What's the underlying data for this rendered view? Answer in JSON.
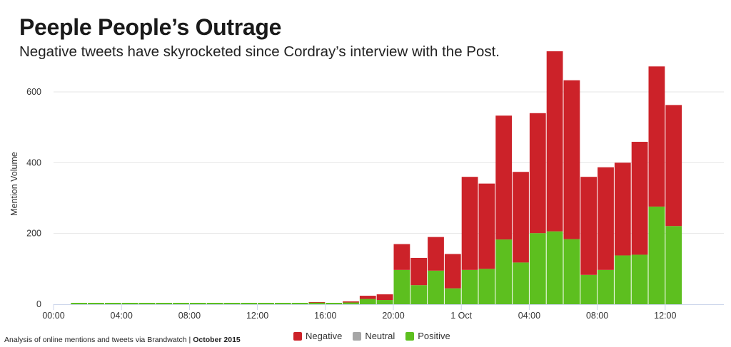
{
  "header": {
    "title": "Peeple People’s Outrage",
    "subtitle": "Negative tweets have skyrocketed since Cordray’s interview with the Post."
  },
  "footer": {
    "source": "Analysis of online mentions and tweets via Brandwatch |",
    "date": "October 2015"
  },
  "chart_data": {
    "type": "bar",
    "stacked": true,
    "ylabel": "Mention Volume",
    "ylim": [
      0,
      720
    ],
    "yticks": [
      0,
      200,
      400,
      600
    ],
    "grid": true,
    "legend_position": "bottom-center",
    "x_tick_labels": [
      "00:00",
      "04:00",
      "08:00",
      "12:00",
      "16:00",
      "20:00",
      "1 Oct",
      "04:00",
      "08:00",
      "12:00"
    ],
    "x_tick_hours": [
      0,
      4,
      8,
      12,
      16,
      20,
      24,
      28,
      32,
      36
    ],
    "x_hours": [
      2,
      3,
      4,
      5,
      6,
      7,
      8,
      9,
      10,
      11,
      12,
      13,
      14,
      15,
      16,
      17,
      18,
      19,
      20,
      21,
      22,
      23,
      24,
      25,
      26,
      27,
      28,
      29,
      30,
      31,
      32,
      33,
      34,
      35,
      36,
      37
    ],
    "series": [
      {
        "name": "Positive",
        "color": "#5dbf1f",
        "values": [
          4,
          4,
          4,
          4,
          4,
          4,
          4,
          4,
          4,
          4,
          4,
          4,
          4,
          4,
          5,
          4,
          5,
          15,
          12,
          97,
          54,
          95,
          45,
          97,
          100,
          183,
          118,
          201,
          206,
          184,
          83,
          97,
          138,
          140,
          276,
          221
        ]
      },
      {
        "name": "Neutral",
        "color": "#a6a6a6",
        "values": [
          0,
          0,
          0,
          0,
          0,
          0,
          0,
          0,
          0,
          0,
          0,
          0,
          0,
          0,
          0,
          0,
          0,
          0,
          0,
          0,
          0,
          0,
          0,
          0,
          0,
          0,
          0,
          0,
          0,
          0,
          0,
          0,
          0,
          0,
          0,
          0
        ]
      },
      {
        "name": "Negative",
        "color": "#cc2229",
        "values": [
          0,
          0,
          0,
          0,
          0,
          0,
          0,
          0,
          0,
          0,
          0,
          0,
          0,
          0,
          1,
          0,
          3,
          9,
          16,
          73,
          77,
          95,
          97,
          263,
          241,
          350,
          256,
          339,
          509,
          449,
          277,
          290,
          262,
          319,
          396,
          342
        ]
      }
    ]
  },
  "legend": {
    "items": [
      {
        "label": "Negative",
        "color": "#cc2229"
      },
      {
        "label": "Neutral",
        "color": "#a6a6a6"
      },
      {
        "label": "Positive",
        "color": "#5dbf1f"
      }
    ]
  }
}
